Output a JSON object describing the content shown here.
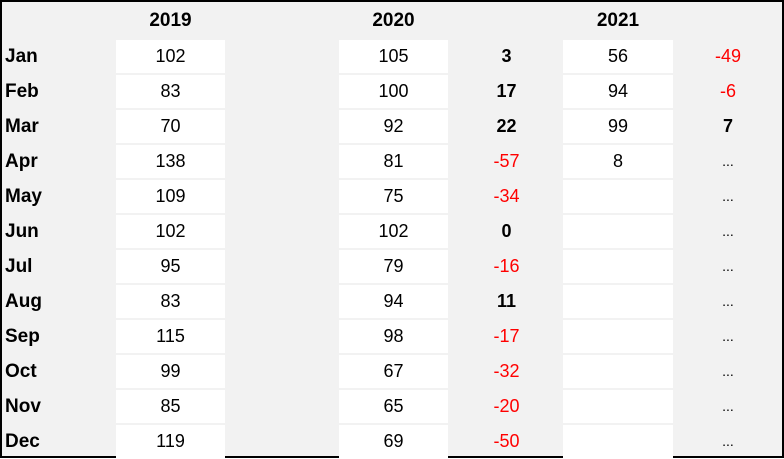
{
  "headers": {
    "y2019": "2019",
    "y2020": "2020",
    "y2021": "2021"
  },
  "rows": [
    {
      "month": "Jan",
      "v2019": "102",
      "v2020": "105",
      "d2020": "3",
      "v2021": "56",
      "d2021": "-49"
    },
    {
      "month": "Feb",
      "v2019": "83",
      "v2020": "100",
      "d2020": "17",
      "v2021": "94",
      "d2021": "-6"
    },
    {
      "month": "Mar",
      "v2019": "70",
      "v2020": "92",
      "d2020": "22",
      "v2021": "99",
      "d2021": "7"
    },
    {
      "month": "Apr",
      "v2019": "138",
      "v2020": "81",
      "d2020": "-57",
      "v2021": "8",
      "d2021": "..."
    },
    {
      "month": "May",
      "v2019": "109",
      "v2020": "75",
      "d2020": "-34",
      "v2021": "",
      "d2021": "..."
    },
    {
      "month": "Jun",
      "v2019": "102",
      "v2020": "102",
      "d2020": "0",
      "v2021": "",
      "d2021": "..."
    },
    {
      "month": "Jul",
      "v2019": "95",
      "v2020": "79",
      "d2020": "-16",
      "v2021": "",
      "d2021": "..."
    },
    {
      "month": "Aug",
      "v2019": "83",
      "v2020": "94",
      "d2020": "11",
      "v2021": "",
      "d2021": "..."
    },
    {
      "month": "Sep",
      "v2019": "115",
      "v2020": "98",
      "d2020": "-17",
      "v2021": "",
      "d2021": "..."
    },
    {
      "month": "Oct",
      "v2019": "99",
      "v2020": "67",
      "d2020": "-32",
      "v2021": "",
      "d2021": "..."
    },
    {
      "month": "Nov",
      "v2019": "85",
      "v2020": "65",
      "d2020": "-20",
      "v2021": "",
      "d2021": "..."
    },
    {
      "month": "Dec",
      "v2019": "119",
      "v2020": "69",
      "d2020": "-50",
      "v2021": "",
      "d2021": "..."
    }
  ],
  "colors": {
    "positive": "#000000",
    "negative": "#ff0000",
    "background": "#f2f2f2",
    "cell": "#ffffff"
  }
}
